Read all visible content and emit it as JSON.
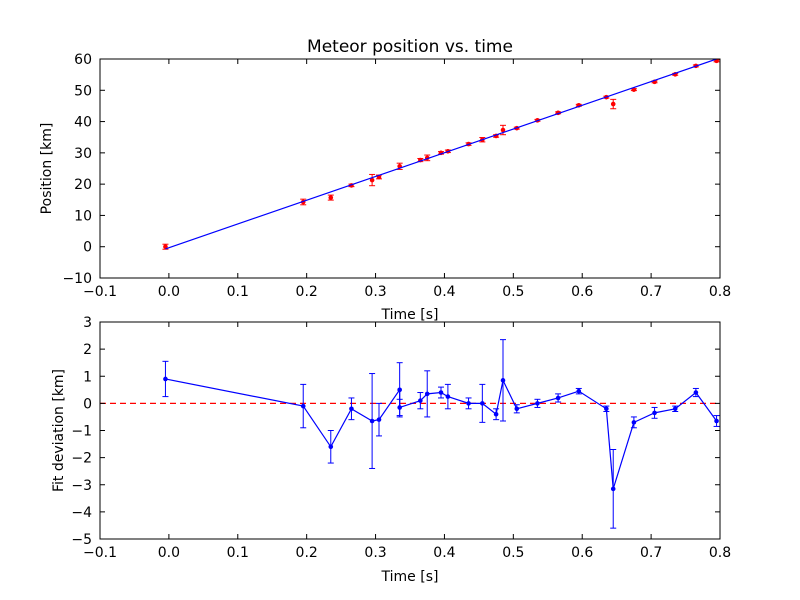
{
  "chart_data": [
    {
      "type": "scatter",
      "title": "Meteor position vs. time",
      "xlabel": "Time [s]",
      "ylabel": "Position [km]",
      "xlim": [
        -0.1,
        0.8
      ],
      "ylim": [
        -10,
        60
      ],
      "xticks": [
        "−0.1",
        "0.0",
        "0.1",
        "0.2",
        "0.3",
        "0.4",
        "0.5",
        "0.6",
        "0.7",
        "0.8"
      ],
      "yticks": [
        "−10",
        "0",
        "10",
        "20",
        "30",
        "40",
        "50",
        "60"
      ],
      "grid": false,
      "series": [
        {
          "style": "markers-with-errorbars",
          "color": "#ff0000",
          "points": [
            {
              "x": -0.005,
              "y": 0.0,
              "err": 0.8
            },
            {
              "x": 0.195,
              "y": 14.3,
              "err": 0.9
            },
            {
              "x": 0.235,
              "y": 15.7,
              "err": 0.8
            },
            {
              "x": 0.265,
              "y": 19.6,
              "err": 0.4
            },
            {
              "x": 0.295,
              "y": 21.3,
              "err": 1.8
            },
            {
              "x": 0.305,
              "y": 22.3,
              "err": 0.6
            },
            {
              "x": 0.335,
              "y": 25.7,
              "err": 1.0
            },
            {
              "x": 0.365,
              "y": 27.7,
              "err": 0.5
            },
            {
              "x": 0.375,
              "y": 28.4,
              "err": 0.9
            },
            {
              "x": 0.395,
              "y": 30.0,
              "err": 0.4
            },
            {
              "x": 0.405,
              "y": 30.5,
              "err": 0.4
            },
            {
              "x": 0.435,
              "y": 32.8,
              "err": 0.4
            },
            {
              "x": 0.455,
              "y": 34.2,
              "err": 0.7
            },
            {
              "x": 0.475,
              "y": 35.4,
              "err": 0.4
            },
            {
              "x": 0.485,
              "y": 37.3,
              "err": 1.5
            },
            {
              "x": 0.505,
              "y": 37.9,
              "err": 0.3
            },
            {
              "x": 0.535,
              "y": 40.4,
              "err": 0.3
            },
            {
              "x": 0.565,
              "y": 42.8,
              "err": 0.3
            },
            {
              "x": 0.595,
              "y": 45.2,
              "err": 0.3
            },
            {
              "x": 0.635,
              "y": 47.8,
              "err": 0.3
            },
            {
              "x": 0.645,
              "y": 45.6,
              "err": 1.5
            },
            {
              "x": 0.675,
              "y": 50.2,
              "err": 0.3
            },
            {
              "x": 0.705,
              "y": 52.7,
              "err": 0.3
            },
            {
              "x": 0.735,
              "y": 55.1,
              "err": 0.3
            },
            {
              "x": 0.765,
              "y": 57.8,
              "err": 0.3
            },
            {
              "x": 0.795,
              "y": 59.4,
              "err": 0.3
            }
          ]
        },
        {
          "style": "line",
          "color": "#0000ff",
          "points": [
            {
              "x": -0.005,
              "y": -0.7
            },
            {
              "x": 0.795,
              "y": 60.0
            }
          ]
        }
      ]
    },
    {
      "type": "line",
      "title": "",
      "xlabel": "Time [s]",
      "ylabel": "Fit deviation [km]",
      "xlim": [
        -0.1,
        0.8
      ],
      "ylim": [
        -5,
        3
      ],
      "xticks": [
        "−0.1",
        "0.0",
        "0.1",
        "0.2",
        "0.3",
        "0.4",
        "0.5",
        "0.6",
        "0.7",
        "0.8"
      ],
      "yticks": [
        "−5",
        "−4",
        "−3",
        "−2",
        "−1",
        "0",
        "1",
        "2",
        "3"
      ],
      "grid": false,
      "zero_line": {
        "y": 0,
        "color": "#ff0000",
        "style": "dashed"
      },
      "series": [
        {
          "style": "line-markers-with-errorbars",
          "color": "#0000ff",
          "points": [
            {
              "x": -0.005,
              "y": 0.9,
              "err": 0.65
            },
            {
              "x": 0.195,
              "y": -0.1,
              "err": 0.8
            },
            {
              "x": 0.235,
              "y": -1.6,
              "err": 0.6
            },
            {
              "x": 0.265,
              "y": -0.2,
              "err": 0.4
            },
            {
              "x": 0.295,
              "y": -0.65,
              "err": 1.75
            },
            {
              "x": 0.305,
              "y": -0.6,
              "err": 0.6
            },
            {
              "x": 0.335,
              "y": 0.5,
              "err": 1.0
            },
            {
              "x": 0.335,
              "y": -0.15,
              "err": 0.3
            },
            {
              "x": 0.365,
              "y": 0.1,
              "err": 0.3
            },
            {
              "x": 0.375,
              "y": 0.35,
              "err": 0.85
            },
            {
              "x": 0.395,
              "y": 0.4,
              "err": 0.2
            },
            {
              "x": 0.405,
              "y": 0.25,
              "err": 0.45
            },
            {
              "x": 0.435,
              "y": 0.0,
              "err": 0.2
            },
            {
              "x": 0.455,
              "y": 0.0,
              "err": 0.7
            },
            {
              "x": 0.475,
              "y": -0.4,
              "err": 0.2
            },
            {
              "x": 0.485,
              "y": 0.85,
              "err": 1.5
            },
            {
              "x": 0.505,
              "y": -0.2,
              "err": 0.15
            },
            {
              "x": 0.535,
              "y": 0.0,
              "err": 0.15
            },
            {
              "x": 0.565,
              "y": 0.2,
              "err": 0.15
            },
            {
              "x": 0.595,
              "y": 0.45,
              "err": 0.1
            },
            {
              "x": 0.635,
              "y": -0.2,
              "err": 0.1
            },
            {
              "x": 0.645,
              "y": -3.15,
              "err": 1.45
            },
            {
              "x": 0.675,
              "y": -0.7,
              "err": 0.2
            },
            {
              "x": 0.705,
              "y": -0.35,
              "err": 0.2
            },
            {
              "x": 0.735,
              "y": -0.2,
              "err": 0.1
            },
            {
              "x": 0.765,
              "y": 0.4,
              "err": 0.15
            },
            {
              "x": 0.795,
              "y": -0.65,
              "err": 0.2
            }
          ]
        }
      ]
    }
  ]
}
